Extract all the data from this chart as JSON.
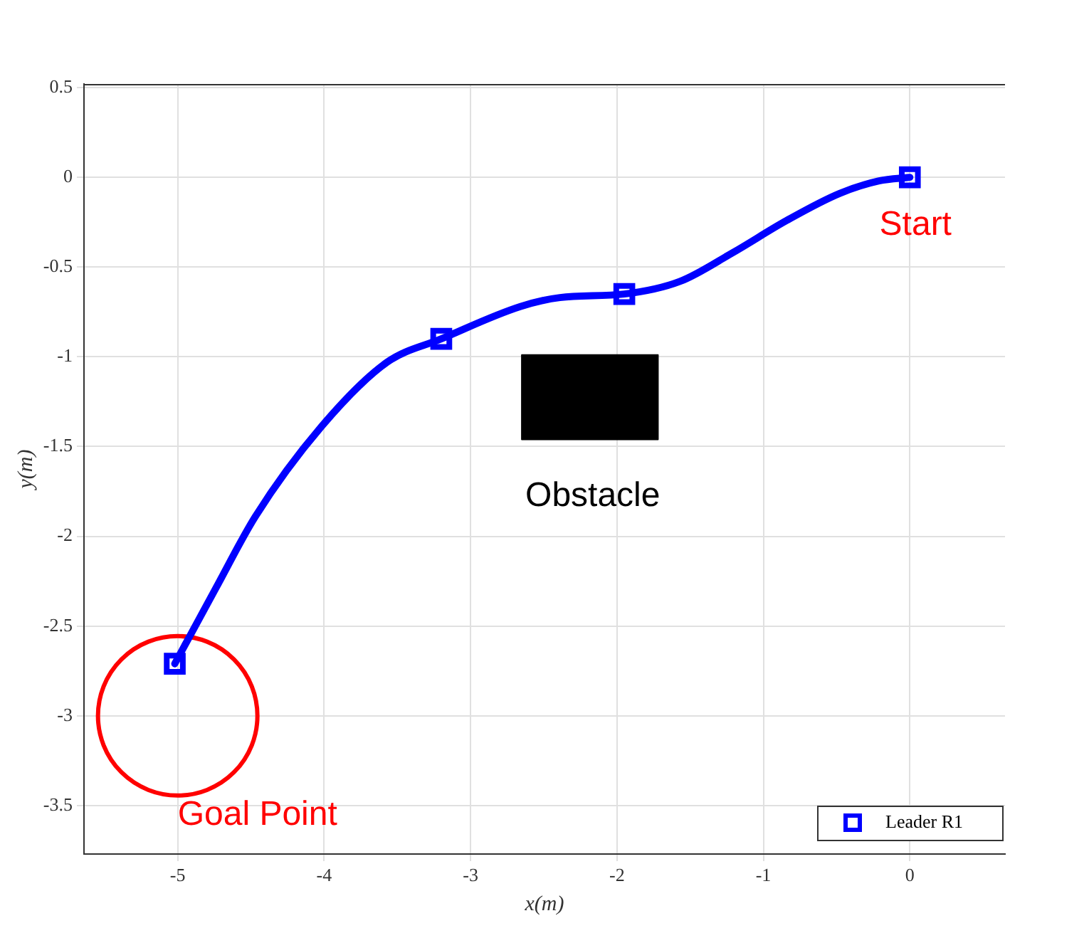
{
  "chart_data": {
    "type": "line",
    "xlabel": "x(m)",
    "ylabel": "y(m)",
    "xlim": [
      -5.64,
      0.65
    ],
    "xticks": [
      -5,
      -4,
      -3,
      -2,
      -1,
      0
    ],
    "ylim": [
      -3.77,
      0.52
    ],
    "yticks": [
      0.5,
      0,
      -0.5,
      -1,
      -1.5,
      -2,
      -2.5,
      -3,
      -3.5
    ],
    "grid": true,
    "legend": "bottom right",
    "series": [
      {
        "color": "#0000ff",
        "marker": "none",
        "x": [
          0,
          -0.21,
          -0.48,
          -0.84,
          -1.21,
          -1.57,
          -1.95,
          -2.39,
          -2.66,
          -3.2,
          -3.57,
          -4.02,
          -4.47,
          -4.74,
          -5.02
        ],
        "values": [
          0,
          -0.02,
          -0.09,
          -0.24,
          -0.42,
          -0.58,
          -0.65,
          -0.67,
          -0.72,
          -0.9,
          -1.03,
          -1.39,
          -1.89,
          -2.29,
          -2.71
        ]
      },
      {
        "type": "scatter",
        "name": "Leader R1",
        "color": "#0000ff",
        "marker": "square",
        "x": [
          0,
          -1.95,
          -3.2,
          -5.02
        ],
        "values": [
          0,
          -0.65,
          -0.9,
          -2.71
        ]
      },
      {
        "type": "area",
        "name": "Obstacle",
        "color": "#000000",
        "marker": "none",
        "x": [
          -2.65,
          -1.72,
          -1.72,
          -2.65,
          -2.65
        ],
        "values": [
          -0.99,
          -0.99,
          -1.46,
          -1.46,
          -0.99
        ]
      },
      {
        "type": "scatter",
        "name": "Goal Point",
        "color": "#ff0000",
        "marker": "circle",
        "x": [
          -5
        ],
        "values": [
          -3
        ]
      }
    ],
    "annotations": [
      {
        "text": "Start",
        "x": 0,
        "y": 0
      }
    ]
  }
}
